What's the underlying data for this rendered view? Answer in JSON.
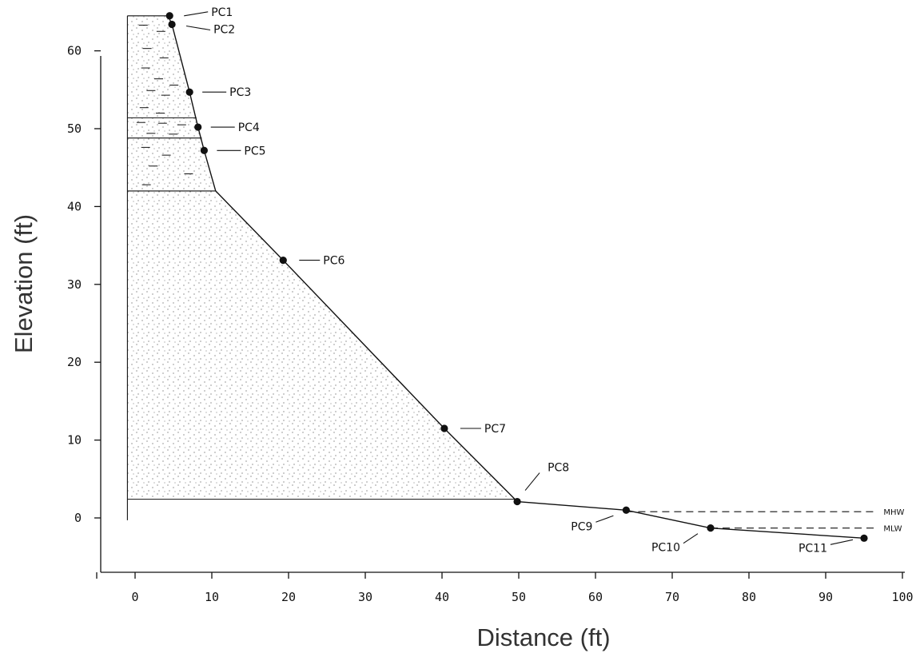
{
  "chart_data": {
    "type": "scatter",
    "title": "",
    "xlabel": "Distance (ft)",
    "ylabel": "Elevation (ft)",
    "xlim": [
      -5,
      100
    ],
    "ylim": [
      -7,
      64
    ],
    "xticks": [
      0,
      10,
      20,
      30,
      40,
      50,
      60,
      70,
      80,
      90,
      100
    ],
    "yticks": [
      0,
      10,
      20,
      30,
      40,
      50,
      60
    ],
    "grid": false,
    "legend": "none",
    "points": [
      {
        "label": "PC1",
        "x": 4.5,
        "y": 64.5
      },
      {
        "label": "PC2",
        "x": 4.8,
        "y": 63.4
      },
      {
        "label": "PC3",
        "x": 7.1,
        "y": 54.7
      },
      {
        "label": "PC4",
        "x": 8.2,
        "y": 50.2
      },
      {
        "label": "PC5",
        "x": 9.0,
        "y": 47.2
      },
      {
        "label": "PC6",
        "x": 19.3,
        "y": 33.1
      },
      {
        "label": "PC7",
        "x": 40.3,
        "y": 11.5
      },
      {
        "label": "PC8",
        "x": 49.8,
        "y": 2.1
      },
      {
        "label": "PC9",
        "x": 64.0,
        "y": 1.0
      },
      {
        "label": "PC10",
        "x": 75.0,
        "y": -1.3
      },
      {
        "label": "PC11",
        "x": 95.0,
        "y": -2.6
      }
    ],
    "profile_line": [
      {
        "x": 4.3,
        "y": 64.5
      },
      {
        "x": 4.8,
        "y": 63.4
      },
      {
        "x": 7.1,
        "y": 54.7
      },
      {
        "x": 8.2,
        "y": 50.2
      },
      {
        "x": 9.0,
        "y": 47.2
      },
      {
        "x": 10.5,
        "y": 42.0
      },
      {
        "x": 19.3,
        "y": 33.1
      },
      {
        "x": 40.3,
        "y": 11.5
      },
      {
        "x": 49.8,
        "y": 2.1
      },
      {
        "x": 64.0,
        "y": 1.0
      },
      {
        "x": 75.0,
        "y": -1.3
      },
      {
        "x": 95.0,
        "y": -2.6
      }
    ],
    "layer_boundaries": [
      {
        "y": 51.4,
        "x_end": 8.0
      },
      {
        "y": 48.8,
        "x_end": 8.7
      },
      {
        "y": 42.0,
        "x_end": 10.5
      },
      {
        "y": 2.4,
        "x_end": 49.8
      }
    ],
    "annotations": [
      {
        "label": "MHW",
        "y": 0.8,
        "x_start": 64.0,
        "x_end": 96.5
      },
      {
        "label": "MLW",
        "y": -1.3,
        "x_start": 75.0,
        "x_end": 96.5
      }
    ]
  }
}
